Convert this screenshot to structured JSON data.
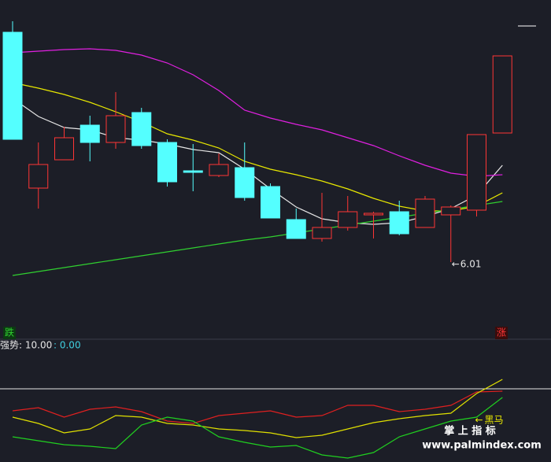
{
  "chart_data": [
    {
      "type": "candlestick",
      "open": [
        7.47,
        6.48,
        6.66,
        6.88,
        6.77,
        6.96,
        6.77,
        6.59,
        6.56,
        6.61,
        6.49,
        6.28,
        6.16,
        6.23,
        6.31,
        6.33,
        6.23,
        6.31,
        6.34,
        6.83
      ],
      "high": [
        7.54,
        6.77,
        6.87,
        6.94,
        7.09,
        6.99,
        6.79,
        6.76,
        6.7,
        6.77,
        6.51,
        6.35,
        6.45,
        6.43,
        6.33,
        6.4,
        6.43,
        6.37,
        6.82,
        7.32
      ],
      "low": [
        6.79,
        6.35,
        6.66,
        6.65,
        6.73,
        6.73,
        6.49,
        6.46,
        6.55,
        6.4,
        6.29,
        6.16,
        6.14,
        6.21,
        6.16,
        6.18,
        6.23,
        6.01,
        6.3,
        6.83
      ],
      "close": [
        6.79,
        6.63,
        6.8,
        6.77,
        6.94,
        6.75,
        6.52,
        6.58,
        6.63,
        6.42,
        6.29,
        6.16,
        6.23,
        6.33,
        6.32,
        6.19,
        6.41,
        6.36,
        6.82,
        7.32
      ],
      "up_color": "#ff3535",
      "down_color": "#54ffff",
      "ylim": [
        5.525,
        7.675
      ],
      "series": [
        {
          "color": "#e6e6e6",
          "values": [
            7.05,
            6.935,
            6.865,
            6.85,
            6.8,
            6.785,
            6.76,
            6.725,
            6.705,
            6.6,
            6.475,
            6.36,
            6.285,
            6.26,
            6.25,
            6.26,
            6.3,
            6.35,
            6.435,
            6.625
          ]
        },
        {
          "color": "#e8e800",
          "values": [
            7.15,
            7.115,
            7.075,
            7.025,
            6.965,
            6.9,
            6.825,
            6.785,
            6.735,
            6.65,
            6.6,
            6.565,
            6.525,
            6.475,
            6.415,
            6.365,
            6.335,
            6.335,
            6.365,
            6.45
          ]
        },
        {
          "color": "#e020e0",
          "values": [
            7.34,
            7.35,
            7.36,
            7.365,
            7.355,
            7.325,
            7.275,
            7.2,
            7.1,
            6.975,
            6.925,
            6.885,
            6.85,
            6.8,
            6.75,
            6.685,
            6.625,
            6.575,
            6.555,
            6.565
          ]
        },
        {
          "color": "#30d030",
          "values": [
            5.925,
            5.95,
            5.975,
            6.0,
            6.025,
            6.05,
            6.075,
            6.1,
            6.125,
            6.15,
            6.17,
            6.195,
            6.22,
            6.245,
            6.27,
            6.295,
            6.32,
            6.345,
            6.37,
            6.395
          ]
        }
      ],
      "low_marker": 6.01,
      "down_label": "跌",
      "up_label": "涨"
    },
    {
      "type": "line",
      "title": "强势: 10.00",
      "subtitle": ": 0.00",
      "ylim": [
        -5.5,
        20
      ],
      "reference_line": 10,
      "series": [
        {
          "color": "#e02020",
          "values": [
            5.33,
            6.0,
            4.0,
            5.67,
            6.17,
            5.17,
            3.17,
            2.67,
            4.33,
            4.83,
            5.33,
            4.0,
            4.33,
            6.5,
            6.5,
            5.17,
            5.67,
            6.5,
            9.33,
            9.5
          ]
        },
        {
          "color": "#e0e000",
          "values": [
            4.0,
            2.67,
            0.67,
            1.5,
            4.33,
            4.0,
            2.67,
            2.33,
            1.5,
            1.17,
            0.67,
            -0.33,
            0.17,
            1.5,
            2.83,
            3.67,
            4.33,
            4.83,
            9.0,
            12.0
          ]
        },
        {
          "name": "黑马",
          "color": "#20d020",
          "values": [
            -0.17,
            -1.0,
            -1.83,
            -2.17,
            -2.67,
            2.33,
            4.0,
            3.17,
            -0.17,
            -1.33,
            -2.33,
            -2.0,
            -4.0,
            -4.67,
            -3.5,
            -0.17,
            1.5,
            3.17,
            4.0,
            8.17
          ]
        }
      ]
    }
  ],
  "watermark": {
    "title": "掌 上 指 标",
    "url": "www.palmindex.com"
  }
}
